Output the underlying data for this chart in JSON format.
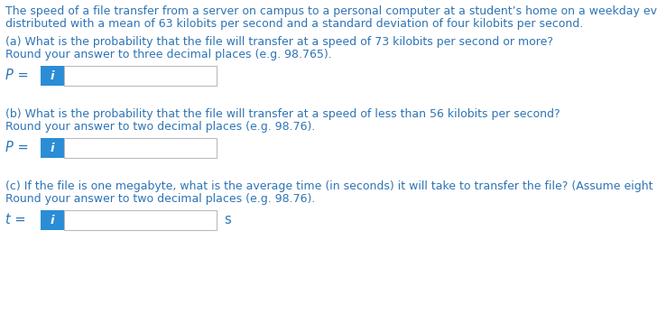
{
  "bg_color": "#ffffff",
  "blue": "#2E74B5",
  "i_button_color": "#2B8DD6",
  "i_button_text_color": "#ffffff",
  "input_box_border": "#bbbbbb",
  "input_box_color": "#ffffff",
  "intro_line1": "The speed of a file transfer from a server on campus to a personal computer at a student’s home on a weekday evening is normally",
  "intro_line2": "distributed with a mean of 63 kilobits per second and a standard deviation of four kilobits per second.",
  "part_a_line1": "(a) What is the probability that the file will transfer at a speed of 73 kilobits per second or more?",
  "part_a_line2": "Round your answer to three decimal places (e.g. 98.765).",
  "part_a_label": "P =",
  "part_b_line1": "(b) What is the probability that the file will transfer at a speed of less than 56 kilobits per second?",
  "part_b_line2": "Round your answer to two decimal places (e.g. 98.76).",
  "part_b_label": "P =",
  "part_c_line1": "(c) If the file is one megabyte, what is the average time (in seconds) it will take to transfer the file? (Assume eight bits per byte)",
  "part_c_line2": "Round your answer to two decimal places (e.g. 98.76).",
  "part_c_label": "t =",
  "part_c_unit": "s",
  "font_size_body": 9.0,
  "font_size_label": 10.5,
  "font_size_i": 9.5
}
